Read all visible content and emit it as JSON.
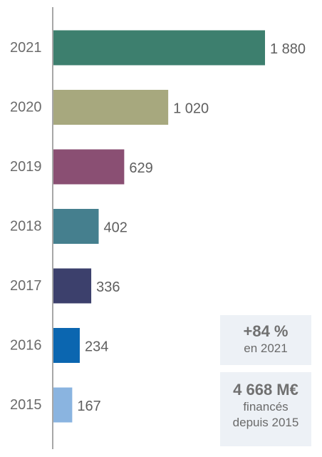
{
  "chart_data": {
    "type": "bar",
    "orientation": "horizontal",
    "categories": [
      "2021",
      "2020",
      "2019",
      "2018",
      "2017",
      "2016",
      "2015"
    ],
    "values": [
      1880,
      1020,
      629,
      402,
      336,
      234,
      167
    ],
    "value_labels": [
      "1 880",
      "1 020",
      "629",
      "402",
      "336",
      "234",
      "167"
    ],
    "bar_colors": [
      "#3d7f6e",
      "#a7a87e",
      "#8a4f73",
      "#457f8e",
      "#3c406c",
      "#0b66b0",
      "#8ab4e0"
    ],
    "xlim": [
      0,
      1880
    ],
    "grid": false,
    "legend": false,
    "title": "",
    "xlabel": "",
    "ylabel": ""
  },
  "stats": {
    "growth_value": "+84 %",
    "growth_caption": "en 2021",
    "total_value": "4 668 M€",
    "total_caption_line1": "financés",
    "total_caption_line2": "depuis 2015"
  }
}
